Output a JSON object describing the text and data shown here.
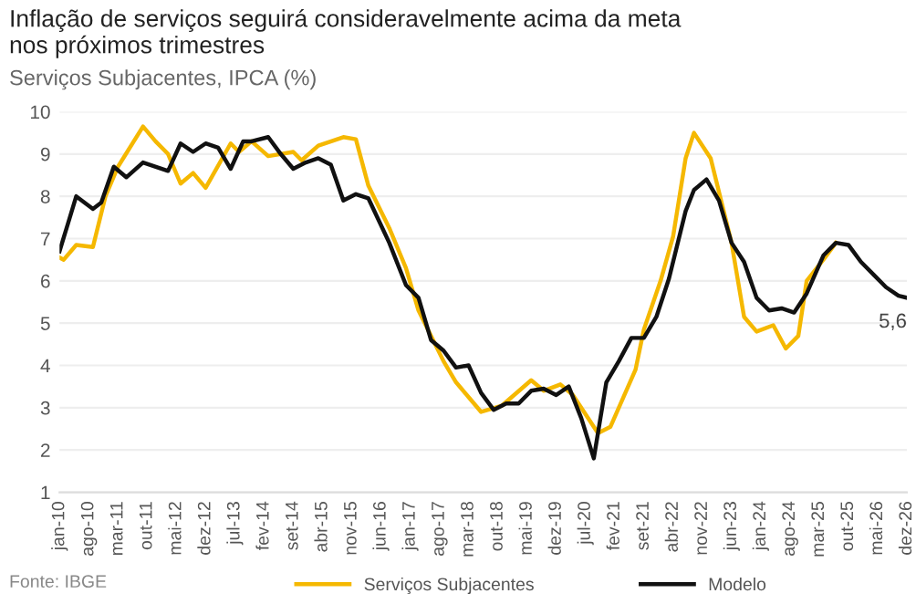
{
  "chart_data": {
    "type": "line",
    "title": "Inflação de serviços seguirá consideravelmente acima da meta\nnos próximos trimestres",
    "subtitle": "Serviços Subjacentes, IPCA (%)",
    "annotations": [
      {
        "text": "5,6",
        "x": "2026-12",
        "y": 5.6
      },
      "Fonte: IBGE"
    ],
    "series": [
      {
        "name": "Serviços Subjacentes",
        "color": "#f5b800",
        "x": [
          "2010-01",
          "2010-02",
          "2010-05",
          "2010-09",
          "2010-12",
          "2011-03",
          "2011-09",
          "2011-12",
          "2012-03",
          "2012-06",
          "2012-09",
          "2012-12",
          "2013-06",
          "2013-08",
          "2013-11",
          "2014-03",
          "2014-09",
          "2014-11",
          "2015-03",
          "2015-09",
          "2015-12",
          "2016-03",
          "2016-08",
          "2016-12",
          "2017-03",
          "2017-09",
          "2017-12",
          "2018-03",
          "2018-06",
          "2018-11",
          "2019-06",
          "2019-09",
          "2020-01",
          "2020-04",
          "2020-10",
          "2021-01",
          "2021-07",
          "2021-09",
          "2022-01",
          "2022-04",
          "2022-07",
          "2022-09",
          "2023-01",
          "2023-06",
          "2023-09",
          "2023-12",
          "2024-04",
          "2024-07",
          "2024-10",
          "2024-12",
          "2025-04",
          "2025-07"
        ],
        "values": [
          6.55,
          6.5,
          6.85,
          6.8,
          8.0,
          8.7,
          9.65,
          9.3,
          9.0,
          8.3,
          8.55,
          8.2,
          9.25,
          9.05,
          9.3,
          8.95,
          9.05,
          8.85,
          9.2,
          9.4,
          9.35,
          8.25,
          7.25,
          6.3,
          5.3,
          4.1,
          3.6,
          3.25,
          2.9,
          3.05,
          3.65,
          3.4,
          3.55,
          3.3,
          2.4,
          2.55,
          3.9,
          4.85,
          6.0,
          7.05,
          8.9,
          9.5,
          8.9,
          6.9,
          5.15,
          4.8,
          4.95,
          4.4,
          4.7,
          6.0,
          6.5,
          6.9
        ]
      },
      {
        "name": "Modelo",
        "color": "#111111",
        "x": [
          "2010-01",
          "2010-03",
          "2010-05",
          "2010-09",
          "2010-11",
          "2011-02",
          "2011-05",
          "2011-09",
          "2012-03",
          "2012-06",
          "2012-09",
          "2012-12",
          "2013-03",
          "2013-06",
          "2013-09",
          "2013-11",
          "2014-03",
          "2014-06",
          "2014-09",
          "2014-12",
          "2015-03",
          "2015-06",
          "2015-09",
          "2015-12",
          "2016-03",
          "2016-08",
          "2016-12",
          "2017-03",
          "2017-06",
          "2017-09",
          "2017-12",
          "2018-03",
          "2018-06",
          "2018-09",
          "2018-12",
          "2019-03",
          "2019-06",
          "2019-09",
          "2019-12",
          "2020-03",
          "2020-06",
          "2020-09",
          "2020-12",
          "2021-03",
          "2021-06",
          "2021-09",
          "2021-12",
          "2022-03",
          "2022-07",
          "2022-09",
          "2022-12",
          "2023-03",
          "2023-06",
          "2023-09",
          "2023-12",
          "2024-03",
          "2024-06",
          "2024-09",
          "2024-12",
          "2025-04",
          "2025-07",
          "2025-10",
          "2026-01",
          "2026-04",
          "2026-07",
          "2026-10",
          "2026-12"
        ],
        "values": [
          6.7,
          7.35,
          8.0,
          7.7,
          7.85,
          8.7,
          8.45,
          8.8,
          8.6,
          9.25,
          9.05,
          9.25,
          9.15,
          8.65,
          9.3,
          9.3,
          9.4,
          9.0,
          8.65,
          8.8,
          8.9,
          8.75,
          7.9,
          8.05,
          7.95,
          6.9,
          5.9,
          5.6,
          4.6,
          4.35,
          3.95,
          4.0,
          3.35,
          2.95,
          3.1,
          3.1,
          3.4,
          3.45,
          3.3,
          3.5,
          2.75,
          1.8,
          3.6,
          4.1,
          4.65,
          4.65,
          5.15,
          6.05,
          7.65,
          8.15,
          8.4,
          7.9,
          6.9,
          6.45,
          5.6,
          5.3,
          5.35,
          5.25,
          5.7,
          6.6,
          6.9,
          6.85,
          6.45,
          6.15,
          5.85,
          5.65,
          5.6
        ]
      }
    ],
    "xlim": [
      "2010-01",
      "2026-12"
    ],
    "xticks": [
      {
        "value": "2010-01",
        "label": "jan-10"
      },
      {
        "value": "2010-08",
        "label": "ago-10"
      },
      {
        "value": "2011-03",
        "label": "mar-11"
      },
      {
        "value": "2011-10",
        "label": "out-11"
      },
      {
        "value": "2012-05",
        "label": "mai-12"
      },
      {
        "value": "2012-12",
        "label": "dez-12"
      },
      {
        "value": "2013-07",
        "label": "jul-13"
      },
      {
        "value": "2014-02",
        "label": "fev-14"
      },
      {
        "value": "2014-09",
        "label": "set-14"
      },
      {
        "value": "2015-04",
        "label": "abr-15"
      },
      {
        "value": "2015-11",
        "label": "nov-15"
      },
      {
        "value": "2016-06",
        "label": "jun-16"
      },
      {
        "value": "2017-01",
        "label": "jan-17"
      },
      {
        "value": "2017-08",
        "label": "ago-17"
      },
      {
        "value": "2018-03",
        "label": "mar-18"
      },
      {
        "value": "2018-10",
        "label": "out-18"
      },
      {
        "value": "2019-05",
        "label": "mai-19"
      },
      {
        "value": "2019-12",
        "label": "dez-19"
      },
      {
        "value": "2020-07",
        "label": "jul-20"
      },
      {
        "value": "2021-02",
        "label": "fev-21"
      },
      {
        "value": "2021-09",
        "label": "set-21"
      },
      {
        "value": "2022-04",
        "label": "abr-22"
      },
      {
        "value": "2022-11",
        "label": "nov-22"
      },
      {
        "value": "2023-06",
        "label": "jun-23"
      },
      {
        "value": "2024-01",
        "label": "jan-24"
      },
      {
        "value": "2024-08",
        "label": "ago-24"
      },
      {
        "value": "2025-03",
        "label": "mar-25"
      },
      {
        "value": "2025-10",
        "label": "out-25"
      },
      {
        "value": "2026-05",
        "label": "mai-26"
      },
      {
        "value": "2026-12",
        "label": "dez-26"
      }
    ],
    "ylim": [
      1,
      10
    ],
    "yticks": [
      1,
      2,
      3,
      4,
      5,
      6,
      7,
      8,
      9,
      10
    ],
    "grid": "y",
    "legend": "bottom",
    "marker": "none",
    "line_style": "solid"
  }
}
